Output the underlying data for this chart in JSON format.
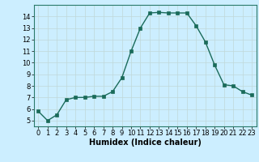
{
  "x": [
    0,
    1,
    2,
    3,
    4,
    5,
    6,
    7,
    8,
    9,
    10,
    11,
    12,
    13,
    14,
    15,
    16,
    17,
    18,
    19,
    20,
    21,
    22,
    23
  ],
  "y": [
    5.8,
    5.0,
    5.5,
    6.8,
    7.0,
    7.0,
    7.1,
    7.1,
    7.5,
    8.7,
    11.0,
    13.0,
    14.3,
    14.35,
    14.3,
    14.3,
    14.3,
    13.2,
    11.8,
    9.8,
    8.1,
    8.0,
    7.5,
    7.2
  ],
  "line_color": "#1a6b5a",
  "marker": "s",
  "markersize": 2.5,
  "linewidth": 1.0,
  "bg_color": "#cceeff",
  "grid_color": "#c0d8d8",
  "xlabel": "Humidex (Indice chaleur)",
  "xlabel_fontsize": 7,
  "tick_fontsize": 6,
  "xlim": [
    -0.5,
    23.5
  ],
  "ylim": [
    4.5,
    15.0
  ],
  "yticks": [
    5,
    6,
    7,
    8,
    9,
    10,
    11,
    12,
    13,
    14
  ],
  "xticks": [
    0,
    1,
    2,
    3,
    4,
    5,
    6,
    7,
    8,
    9,
    10,
    11,
    12,
    13,
    14,
    15,
    16,
    17,
    18,
    19,
    20,
    21,
    22,
    23
  ]
}
